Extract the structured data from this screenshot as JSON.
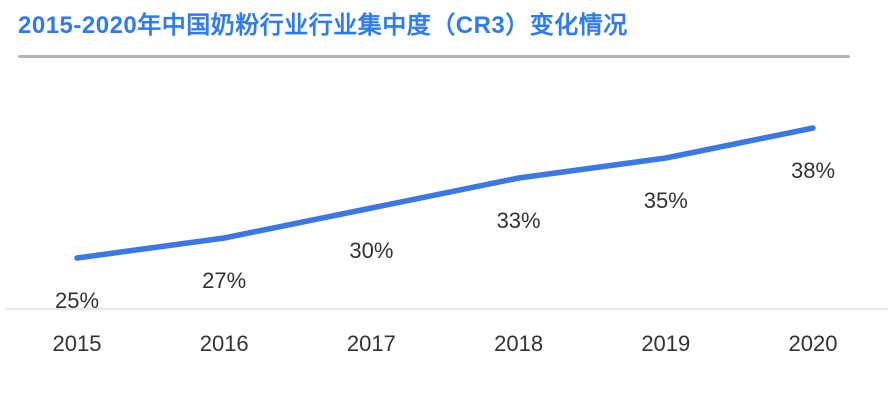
{
  "title": "2015-2020年中国奶粉行业行业集中度（CR3）变化情况",
  "colors": {
    "title": "#2E7BF5",
    "line": "#3B78E6",
    "divider": "#B5B5B5",
    "axis": "#E8E8E8",
    "label": "#333333"
  },
  "chart_data": {
    "type": "line",
    "title": "2015-2020年中国奶粉行业行业集中度（CR3）变化情况",
    "categories": [
      "2015",
      "2016",
      "2017",
      "2018",
      "2019",
      "2020"
    ],
    "series": [
      {
        "name": "CR3",
        "values": [
          25,
          27,
          30,
          33,
          35,
          38
        ]
      }
    ],
    "data_labels": [
      "25%",
      "27%",
      "30%",
      "33%",
      "35%",
      "38%"
    ],
    "xlabel": "",
    "ylabel": "",
    "unit": "%",
    "ylim": [
      23,
      40
    ],
    "grid": false,
    "legend": false,
    "data_label_position": "below-line"
  }
}
